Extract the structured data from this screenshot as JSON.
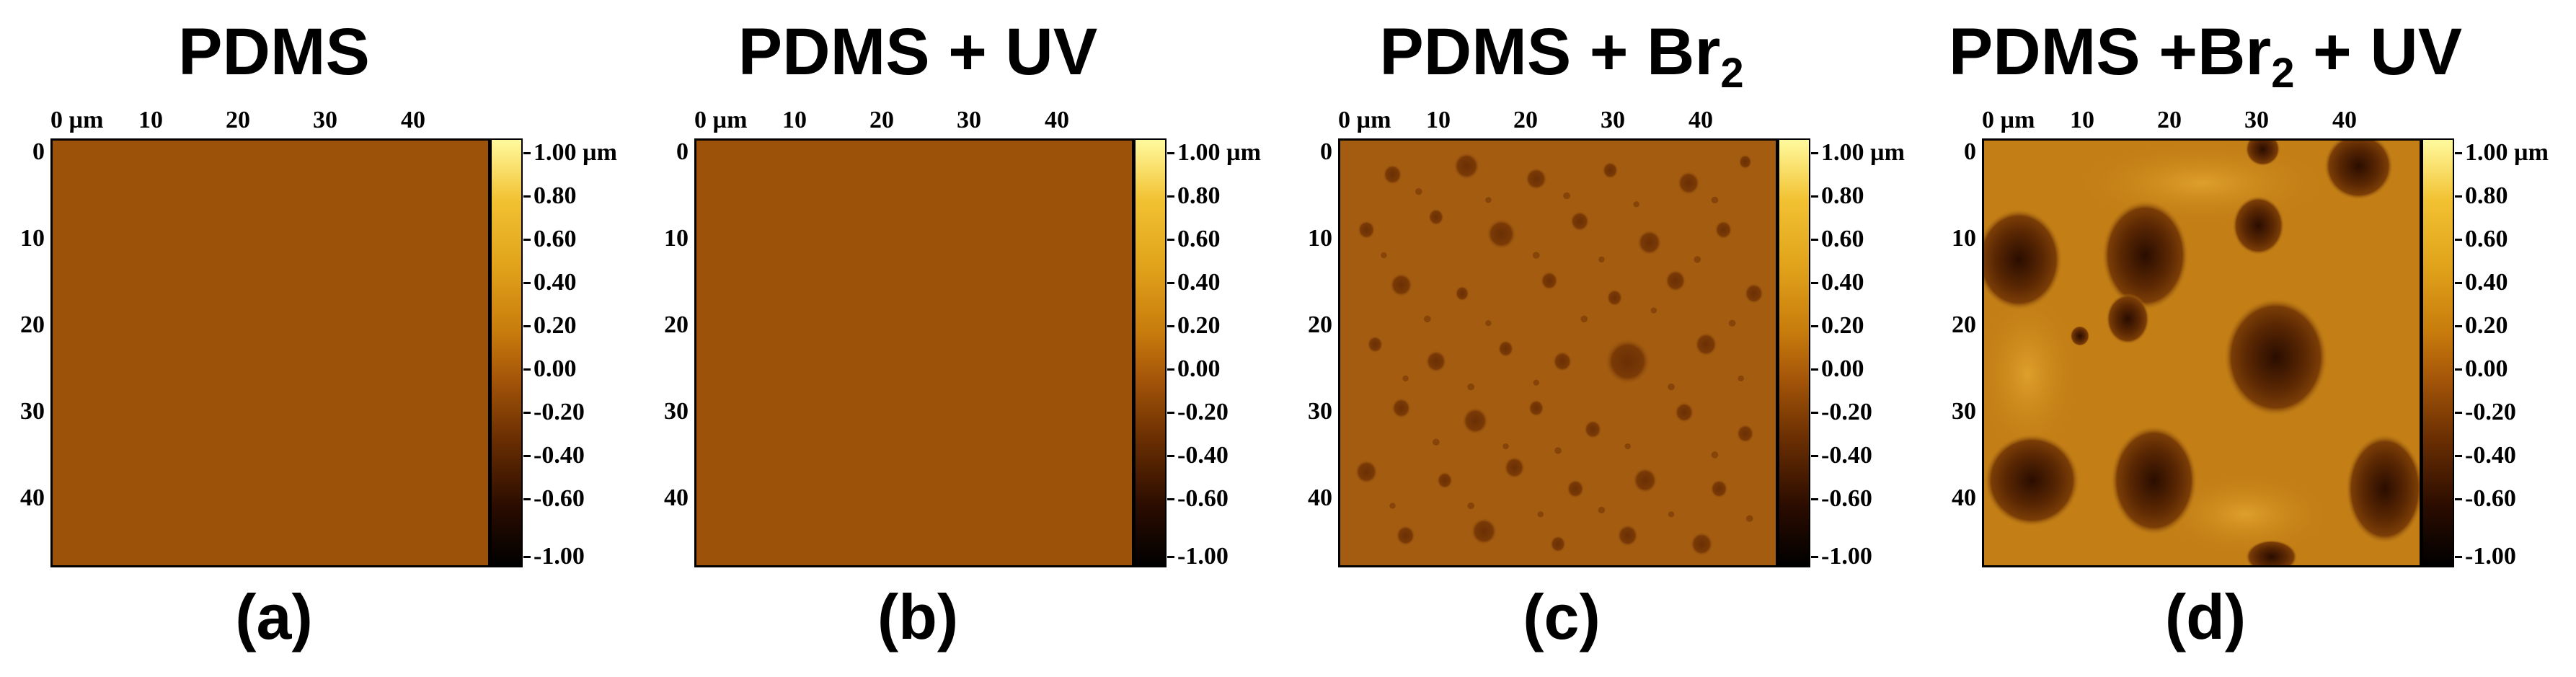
{
  "figure": {
    "panels": [
      {
        "id": "a",
        "title": "PDMS",
        "title_sub": "",
        "title_suffix": "",
        "caption": "(a)",
        "surface": "flat"
      },
      {
        "id": "b",
        "title": "PDMS + UV",
        "title_sub": "",
        "title_suffix": "",
        "caption": "(b)",
        "surface": "flat"
      },
      {
        "id": "c",
        "title": "PDMS + Br",
        "title_sub": "2",
        "title_suffix": "",
        "caption": "(c)",
        "surface": "small pits"
      },
      {
        "id": "d",
        "title": "PDMS +Br",
        "title_sub": "2",
        "title_suffix": " + UV",
        "caption": "(d)",
        "surface": "large pits"
      }
    ],
    "x_ticks": [
      "0 µm",
      "10",
      "20",
      "30",
      "40"
    ],
    "y_ticks": [
      "0",
      "10",
      "20",
      "30",
      "40"
    ],
    "colorbar_ticks": [
      "1.00 µm",
      "0.80",
      "0.60",
      "0.40",
      "0.20",
      "0.00",
      "-0.20",
      "-0.40",
      "-0.60",
      "-1.00"
    ],
    "colors": {
      "flat_surface": "#9c5309",
      "br_surface": "#a35c10",
      "brUV_surface": "#c37f16",
      "pit": "#5a2703",
      "deep_pit": "#2a0d00"
    }
  }
}
